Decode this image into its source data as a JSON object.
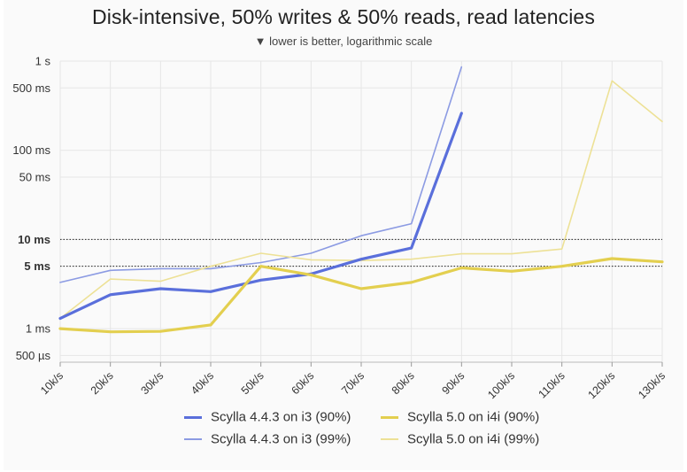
{
  "chart_data": {
    "type": "line",
    "title": "Disk-intensive, 50% writes & 50% reads, read latencies",
    "subtitle": "▼ lower is better, logarithmic scale",
    "y_scale": "log",
    "categories": [
      "10k/s",
      "20k/s",
      "30k/s",
      "40k/s",
      "50k/s",
      "60k/s",
      "70k/s",
      "80k/s",
      "90k/s",
      "100k/s",
      "110k/s",
      "120k/s",
      "130k/s"
    ],
    "y_ticks": [
      {
        "value": 1000,
        "label": "1 s",
        "bold": false
      },
      {
        "value": 500,
        "label": "500 ms",
        "bold": false
      },
      {
        "value": 100,
        "label": "100 ms",
        "bold": false
      },
      {
        "value": 50,
        "label": "50 ms",
        "bold": false
      },
      {
        "value": 10,
        "label": "10 ms",
        "bold": true
      },
      {
        "value": 5,
        "label": "5 ms",
        "bold": true
      },
      {
        "value": 1,
        "label": "1 ms",
        "bold": false
      },
      {
        "value": 0.5,
        "label": "500 µs",
        "bold": false
      }
    ],
    "ylim_ms": [
      0.42,
      1000
    ],
    "reference_lines_ms": [
      10,
      5
    ],
    "grid": true,
    "legend_position": "bottom",
    "series": [
      {
        "name": "Scylla 4.4.3 on i3 (90%)",
        "color": "#5a6fdb",
        "width": 3.2,
        "values": [
          1.3,
          2.4,
          2.8,
          2.6,
          3.5,
          4.1,
          6.0,
          8.0,
          260,
          null,
          null,
          null,
          null
        ]
      },
      {
        "name": "Scylla 4.4.3 on i3 (99%)",
        "color": "#8c9be3",
        "width": 1.6,
        "values": [
          3.3,
          4.5,
          4.7,
          4.7,
          5.5,
          7.0,
          11.0,
          15.0,
          860,
          null,
          null,
          null,
          null
        ]
      },
      {
        "name": "Scylla 5.0 on i4i (90%)",
        "color": "#e3cf4f",
        "width": 3.2,
        "values": [
          1.0,
          0.92,
          0.93,
          1.1,
          5.0,
          4.0,
          2.8,
          3.3,
          4.8,
          4.4,
          5.0,
          6.1,
          5.6
        ]
      },
      {
        "name": "Scylla 5.0 on i4i (99%)",
        "color": "#ede196",
        "width": 1.6,
        "values": [
          1.3,
          3.6,
          3.4,
          5.0,
          7.0,
          5.9,
          5.8,
          6.0,
          6.9,
          6.9,
          7.8,
          600,
          210
        ]
      }
    ]
  }
}
